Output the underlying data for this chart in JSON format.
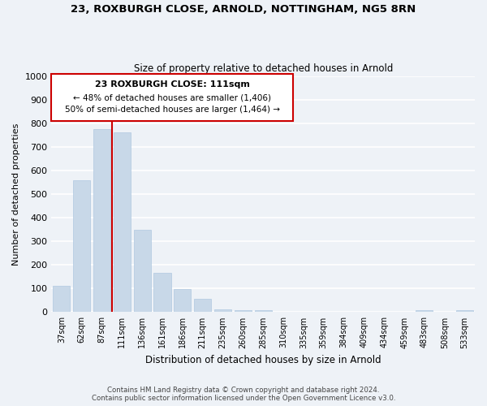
{
  "title": "23, ROXBURGH CLOSE, ARNOLD, NOTTINGHAM, NG5 8RN",
  "subtitle": "Size of property relative to detached houses in Arnold",
  "xlabel": "Distribution of detached houses by size in Arnold",
  "ylabel": "Number of detached properties",
  "bar_labels": [
    "37sqm",
    "62sqm",
    "87sqm",
    "111sqm",
    "136sqm",
    "161sqm",
    "186sqm",
    "211sqm",
    "235sqm",
    "260sqm",
    "285sqm",
    "310sqm",
    "335sqm",
    "359sqm",
    "384sqm",
    "409sqm",
    "434sqm",
    "459sqm",
    "483sqm",
    "508sqm",
    "533sqm"
  ],
  "bar_values": [
    113,
    557,
    775,
    762,
    347,
    165,
    97,
    55,
    13,
    8,
    8,
    0,
    0,
    0,
    0,
    0,
    0,
    0,
    8,
    0,
    8
  ],
  "bar_color": "#c8d8e8",
  "bar_edge_color": "#b0c8e0",
  "vline_color": "#cc0000",
  "vline_x": 2.5,
  "ylim": [
    0,
    1000
  ],
  "yticks": [
    0,
    100,
    200,
    300,
    400,
    500,
    600,
    700,
    800,
    900,
    1000
  ],
  "annotation_title": "23 ROXBURGH CLOSE: 111sqm",
  "annotation_line1": "← 48% of detached houses are smaller (1,406)",
  "annotation_line2": "50% of semi-detached houses are larger (1,464) →",
  "annotation_box_color": "#ffffff",
  "annotation_box_edge": "#cc0000",
  "footer_line1": "Contains HM Land Registry data © Crown copyright and database right 2024.",
  "footer_line2": "Contains public sector information licensed under the Open Government Licence v3.0.",
  "bg_color": "#eef2f7",
  "grid_color": "#ffffff"
}
